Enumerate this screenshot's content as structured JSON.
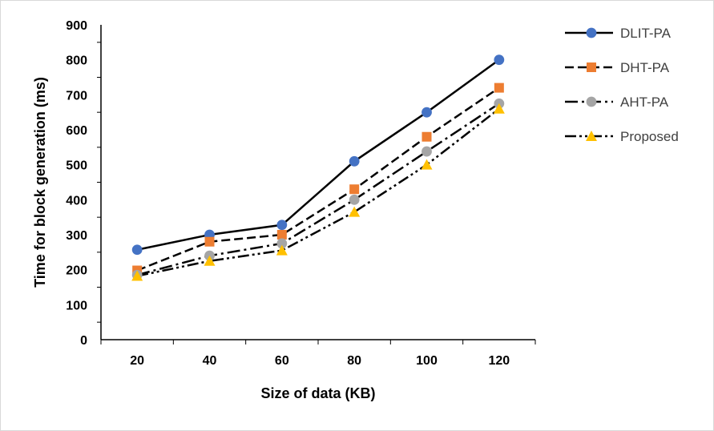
{
  "chart_data": {
    "type": "line",
    "title": "",
    "xlabel": "Size of data (KB)",
    "ylabel": "Time for block generation (ms)",
    "x": [
      20,
      40,
      60,
      80,
      100,
      120
    ],
    "x_tick_labels": [
      "20",
      "40",
      "60",
      "80",
      "100",
      "120"
    ],
    "ylim": [
      0,
      900
    ],
    "y_ticks": [
      0,
      100,
      200,
      300,
      400,
      500,
      600,
      700,
      800,
      900
    ],
    "y_tick_labels": [
      "0",
      "100",
      "200",
      "300",
      "400",
      "500",
      "600",
      "700",
      "800",
      "900"
    ],
    "grid": false,
    "legend_position": "right",
    "series": [
      {
        "name": "DLIT-PA",
        "values": [
          257,
          300,
          328,
          510,
          650,
          800
        ],
        "color": "#4472c4",
        "marker": "circle",
        "dash": "solid"
      },
      {
        "name": "DHT-PA",
        "values": [
          198,
          280,
          300,
          430,
          580,
          720
        ],
        "color": "#ed7d31",
        "marker": "square",
        "dash": "dashed"
      },
      {
        "name": "AHT-PA",
        "values": [
          185,
          240,
          275,
          400,
          538,
          675
        ],
        "color": "#a5a5a5",
        "marker": "circle",
        "dash": "dash-dot"
      },
      {
        "name": "Proposed",
        "values": [
          182,
          225,
          255,
          365,
          500,
          660
        ],
        "color": "#ffc000",
        "marker": "triangle",
        "dash": "dash-dot-dot"
      }
    ]
  }
}
